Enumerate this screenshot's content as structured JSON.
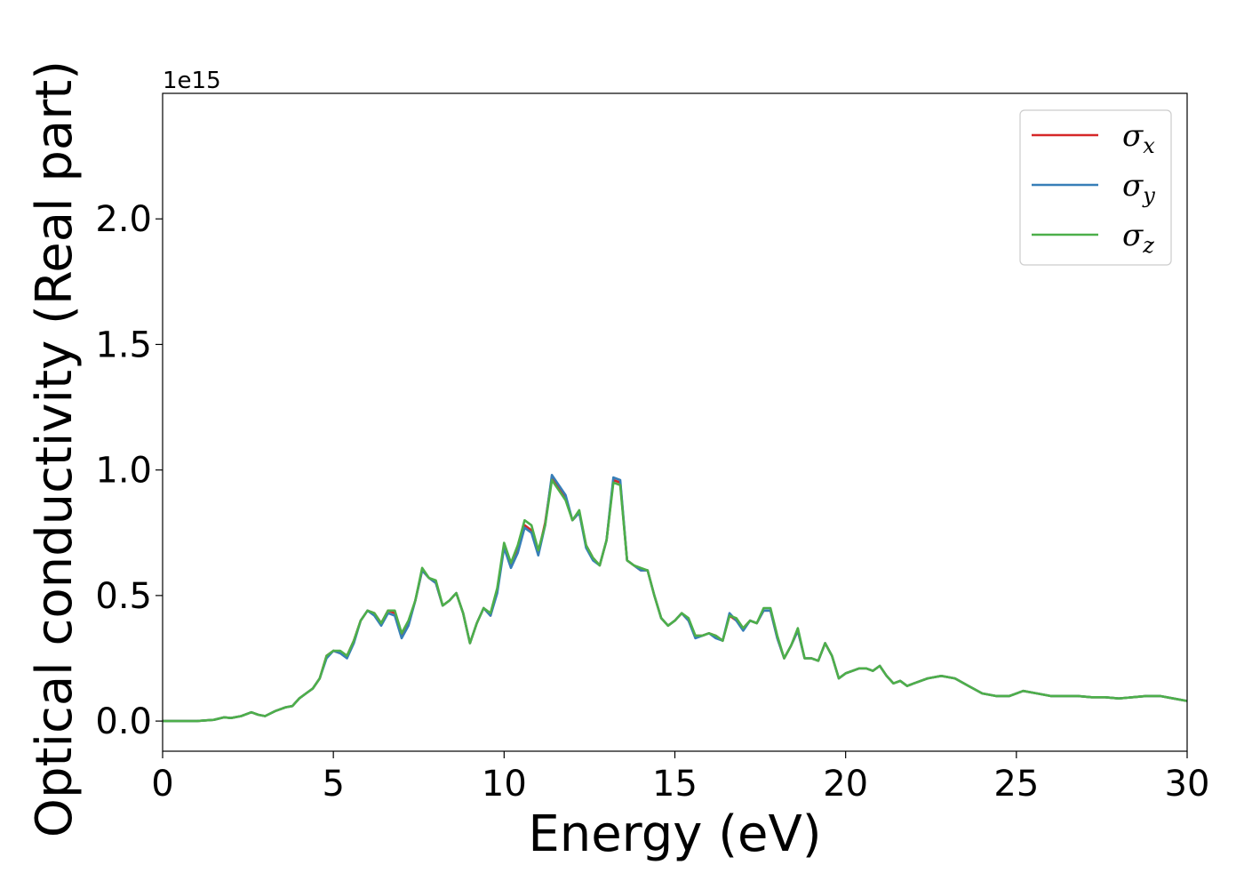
{
  "chart_data": {
    "type": "line",
    "title": "",
    "xlabel": "Energy (eV)",
    "ylabel": "Optical conductivity (Real part)",
    "y_offset_label": "1e15",
    "xlim": [
      0,
      30
    ],
    "ylim": [
      -0.12,
      2.5
    ],
    "x_ticks": [
      0,
      5,
      10,
      15,
      20,
      25,
      30
    ],
    "x_tick_labels": [
      "0",
      "5",
      "10",
      "15",
      "20",
      "25",
      "30"
    ],
    "y_ticks": [
      0.0,
      0.5,
      1.0,
      1.5,
      2.0
    ],
    "y_tick_labels": [
      "0.0",
      "0.5",
      "1.0",
      "1.5",
      "2.0"
    ],
    "grid": false,
    "legend_position": "top-right",
    "x": [
      0,
      0.5,
      1,
      1.5,
      1.8,
      2.0,
      2.3,
      2.6,
      2.8,
      3.0,
      3.3,
      3.6,
      3.8,
      4.0,
      4.2,
      4.4,
      4.6,
      4.8,
      5.0,
      5.2,
      5.4,
      5.6,
      5.8,
      6.0,
      6.2,
      6.4,
      6.6,
      6.8,
      7.0,
      7.2,
      7.4,
      7.6,
      7.8,
      8.0,
      8.2,
      8.4,
      8.6,
      8.8,
      9.0,
      9.2,
      9.4,
      9.6,
      9.8,
      10.0,
      10.2,
      10.4,
      10.6,
      10.8,
      11.0,
      11.2,
      11.4,
      11.6,
      11.8,
      12.0,
      12.2,
      12.4,
      12.6,
      12.8,
      13.0,
      13.2,
      13.4,
      13.6,
      13.8,
      14.0,
      14.2,
      14.4,
      14.6,
      14.8,
      15.0,
      15.2,
      15.4,
      15.6,
      15.8,
      16.0,
      16.2,
      16.4,
      16.6,
      16.8,
      17.0,
      17.2,
      17.4,
      17.6,
      17.8,
      18.0,
      18.2,
      18.4,
      18.6,
      18.8,
      19.0,
      19.2,
      19.4,
      19.6,
      19.8,
      20.0,
      20.2,
      20.4,
      20.6,
      20.8,
      21.0,
      21.2,
      21.4,
      21.6,
      21.8,
      22.0,
      22.4,
      22.8,
      23.2,
      23.6,
      24.0,
      24.4,
      24.8,
      25.2,
      25.6,
      26.0,
      26.4,
      26.8,
      27.2,
      27.6,
      28.0,
      28.4,
      28.8,
      29.2,
      29.6,
      30.0
    ],
    "series": [
      {
        "name": "σ_x",
        "name_base": "σ",
        "name_sub": "x",
        "color": "#d62728",
        "values": [
          0.0,
          0.0,
          0.0,
          0.005,
          0.015,
          0.012,
          0.02,
          0.035,
          0.025,
          0.02,
          0.04,
          0.055,
          0.06,
          0.09,
          0.11,
          0.13,
          0.17,
          0.26,
          0.28,
          0.27,
          0.26,
          0.32,
          0.4,
          0.44,
          0.43,
          0.39,
          0.44,
          0.43,
          0.34,
          0.39,
          0.48,
          0.6,
          0.57,
          0.55,
          0.46,
          0.48,
          0.51,
          0.43,
          0.31,
          0.39,
          0.45,
          0.42,
          0.52,
          0.7,
          0.62,
          0.69,
          0.78,
          0.76,
          0.67,
          0.79,
          0.97,
          0.93,
          0.89,
          0.8,
          0.83,
          0.7,
          0.65,
          0.62,
          0.72,
          0.96,
          0.95,
          0.64,
          0.62,
          0.6,
          0.6,
          0.5,
          0.41,
          0.38,
          0.4,
          0.43,
          0.4,
          0.34,
          0.34,
          0.35,
          0.34,
          0.32,
          0.42,
          0.4,
          0.37,
          0.4,
          0.39,
          0.44,
          0.44,
          0.33,
          0.25,
          0.3,
          0.36,
          0.25,
          0.25,
          0.24,
          0.31,
          0.26,
          0.17,
          0.19,
          0.2,
          0.21,
          0.21,
          0.2,
          0.22,
          0.18,
          0.15,
          0.16,
          0.14,
          0.15,
          0.17,
          0.18,
          0.17,
          0.14,
          0.11,
          0.1,
          0.1,
          0.12,
          0.11,
          0.1,
          0.1,
          0.1,
          0.095,
          0.095,
          0.09,
          0.095,
          0.1,
          0.1,
          0.09,
          0.08
        ]
      },
      {
        "name": "σ_y",
        "name_base": "σ",
        "name_sub": "y",
        "color": "#377eb8",
        "values": [
          0.0,
          0.0,
          0.0,
          0.005,
          0.015,
          0.012,
          0.02,
          0.035,
          0.025,
          0.02,
          0.04,
          0.055,
          0.06,
          0.09,
          0.11,
          0.13,
          0.17,
          0.25,
          0.28,
          0.27,
          0.25,
          0.31,
          0.4,
          0.44,
          0.42,
          0.38,
          0.43,
          0.42,
          0.33,
          0.38,
          0.48,
          0.6,
          0.57,
          0.55,
          0.46,
          0.48,
          0.51,
          0.43,
          0.31,
          0.39,
          0.45,
          0.42,
          0.51,
          0.69,
          0.61,
          0.67,
          0.77,
          0.75,
          0.66,
          0.78,
          0.98,
          0.94,
          0.9,
          0.8,
          0.83,
          0.69,
          0.64,
          0.62,
          0.72,
          0.97,
          0.96,
          0.64,
          0.62,
          0.6,
          0.6,
          0.5,
          0.41,
          0.38,
          0.4,
          0.43,
          0.4,
          0.33,
          0.34,
          0.35,
          0.33,
          0.32,
          0.43,
          0.4,
          0.36,
          0.4,
          0.39,
          0.44,
          0.44,
          0.33,
          0.25,
          0.3,
          0.36,
          0.25,
          0.25,
          0.24,
          0.31,
          0.26,
          0.17,
          0.19,
          0.2,
          0.21,
          0.21,
          0.2,
          0.22,
          0.18,
          0.15,
          0.16,
          0.14,
          0.15,
          0.17,
          0.18,
          0.17,
          0.14,
          0.11,
          0.1,
          0.1,
          0.12,
          0.11,
          0.1,
          0.1,
          0.1,
          0.095,
          0.095,
          0.09,
          0.095,
          0.1,
          0.1,
          0.09,
          0.08
        ]
      },
      {
        "name": "σ_z",
        "name_base": "σ",
        "name_sub": "z",
        "color": "#4daf4a",
        "values": [
          0.0,
          0.0,
          0.0,
          0.005,
          0.015,
          0.012,
          0.02,
          0.035,
          0.025,
          0.02,
          0.04,
          0.055,
          0.06,
          0.09,
          0.11,
          0.13,
          0.17,
          0.26,
          0.28,
          0.28,
          0.26,
          0.32,
          0.4,
          0.44,
          0.43,
          0.39,
          0.44,
          0.44,
          0.35,
          0.4,
          0.48,
          0.61,
          0.57,
          0.56,
          0.46,
          0.48,
          0.51,
          0.43,
          0.31,
          0.39,
          0.45,
          0.43,
          0.53,
          0.71,
          0.63,
          0.7,
          0.8,
          0.78,
          0.68,
          0.78,
          0.96,
          0.92,
          0.88,
          0.8,
          0.84,
          0.7,
          0.65,
          0.62,
          0.72,
          0.95,
          0.94,
          0.64,
          0.62,
          0.61,
          0.6,
          0.5,
          0.41,
          0.38,
          0.4,
          0.43,
          0.41,
          0.34,
          0.34,
          0.35,
          0.34,
          0.32,
          0.42,
          0.41,
          0.37,
          0.4,
          0.39,
          0.45,
          0.45,
          0.34,
          0.25,
          0.3,
          0.37,
          0.25,
          0.25,
          0.24,
          0.31,
          0.26,
          0.17,
          0.19,
          0.2,
          0.21,
          0.21,
          0.2,
          0.22,
          0.18,
          0.15,
          0.16,
          0.14,
          0.15,
          0.17,
          0.18,
          0.17,
          0.14,
          0.11,
          0.1,
          0.1,
          0.12,
          0.11,
          0.1,
          0.1,
          0.1,
          0.095,
          0.095,
          0.09,
          0.095,
          0.1,
          0.1,
          0.09,
          0.08
        ]
      }
    ]
  }
}
